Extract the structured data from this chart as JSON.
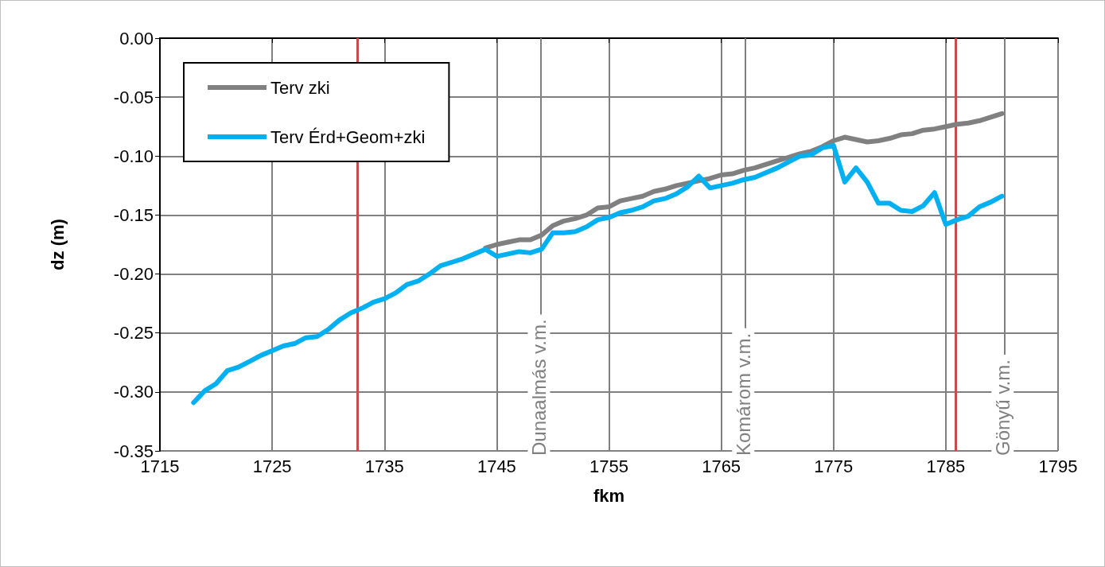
{
  "chart_data": {
    "type": "line",
    "xlabel": "fkm",
    "ylabel": "dz (m)",
    "x": [
      1718,
      1719,
      1720,
      1721,
      1722,
      1723,
      1724,
      1725,
      1726,
      1727,
      1728,
      1729,
      1730,
      1731,
      1732,
      1733,
      1734,
      1735,
      1736,
      1737,
      1738,
      1739,
      1740,
      1741,
      1742,
      1743,
      1744,
      1745,
      1746,
      1747,
      1748,
      1749,
      1750,
      1751,
      1752,
      1753,
      1754,
      1755,
      1756,
      1757,
      1758,
      1759,
      1760,
      1761,
      1762,
      1763,
      1764,
      1765,
      1766,
      1767,
      1768,
      1769,
      1770,
      1771,
      1772,
      1773,
      1774,
      1775,
      1776,
      1777,
      1778,
      1779,
      1780,
      1781,
      1782,
      1783,
      1784,
      1785,
      1786,
      1787,
      1788,
      1789,
      1790
    ],
    "series": [
      {
        "name": "Terv zki",
        "color": "#808080",
        "values": [
          null,
          null,
          null,
          null,
          null,
          null,
          null,
          null,
          null,
          null,
          null,
          null,
          null,
          null,
          null,
          null,
          null,
          null,
          null,
          null,
          null,
          null,
          null,
          null,
          null,
          null,
          -0.178,
          -0.175,
          -0.173,
          -0.171,
          -0.171,
          -0.167,
          -0.159,
          -0.155,
          -0.153,
          -0.15,
          -0.144,
          -0.143,
          -0.138,
          -0.136,
          -0.134,
          -0.13,
          -0.128,
          -0.125,
          -0.123,
          -0.121,
          -0.119,
          -0.116,
          -0.115,
          -0.112,
          -0.11,
          -0.107,
          -0.104,
          -0.101,
          -0.098,
          -0.096,
          -0.092,
          -0.087,
          -0.084,
          -0.086,
          -0.088,
          -0.087,
          -0.085,
          -0.082,
          -0.081,
          -0.078,
          -0.077,
          -0.075,
          -0.073,
          -0.072,
          -0.07,
          -0.067,
          -0.064
        ]
      },
      {
        "name": "Terv Érd+Geom+zki",
        "color": "#00b0f0",
        "values": [
          -0.309,
          -0.299,
          -0.293,
          -0.282,
          -0.279,
          -0.274,
          -0.269,
          -0.265,
          -0.261,
          -0.259,
          -0.254,
          -0.253,
          -0.247,
          -0.239,
          -0.233,
          -0.229,
          -0.224,
          -0.221,
          -0.216,
          -0.209,
          -0.206,
          -0.2,
          -0.193,
          -0.19,
          -0.187,
          -0.183,
          -0.179,
          -0.185,
          -0.183,
          -0.181,
          -0.182,
          -0.179,
          -0.165,
          -0.165,
          -0.164,
          -0.16,
          -0.154,
          -0.152,
          -0.148,
          -0.146,
          -0.143,
          -0.138,
          -0.136,
          -0.132,
          -0.126,
          -0.117,
          -0.127,
          -0.125,
          -0.123,
          -0.12,
          -0.118,
          -0.114,
          -0.11,
          -0.105,
          -0.1,
          -0.099,
          -0.093,
          -0.091,
          -0.122,
          -0.11,
          -0.122,
          -0.14,
          -0.14,
          -0.146,
          -0.147,
          -0.142,
          -0.131,
          -0.158,
          -0.154,
          -0.151,
          -0.143,
          -0.139,
          -0.134
        ]
      }
    ],
    "xlim": [
      1715,
      1795
    ],
    "xticks": [
      1715,
      1725,
      1735,
      1745,
      1755,
      1765,
      1775,
      1785,
      1795
    ],
    "ylim": [
      -0.35,
      0
    ],
    "yticks": [
      {
        "value": -0.35,
        "label": "-0.35"
      },
      {
        "value": -0.3,
        "label": "-0.30"
      },
      {
        "value": -0.25,
        "label": "-0.25"
      },
      {
        "value": -0.2,
        "label": "-0.20"
      },
      {
        "value": -0.15,
        "label": "-0.15"
      },
      {
        "value": -0.1,
        "label": "-0.10"
      },
      {
        "value": -0.05,
        "label": "-0.05"
      },
      {
        "value": 0,
        "label": "0.00"
      }
    ],
    "ref_lines": [
      {
        "axis": "x",
        "value": 1748.9,
        "label": "Dunaalmás v.m.",
        "color": "#808080"
      },
      {
        "axis": "x",
        "value": 1767.1,
        "label": "Komárom v.m.",
        "color": "#808080"
      },
      {
        "axis": "x",
        "value": 1790.2,
        "label": "Gönyű v.m.",
        "color": "#808080"
      },
      {
        "axis": "x",
        "value": 1732.6,
        "color": "#c0504d"
      },
      {
        "axis": "x",
        "value": 1785.9,
        "color": "#c0504d"
      }
    ],
    "grid": true,
    "legend": "top left",
    "marker": "none",
    "line_style": "solid"
  }
}
